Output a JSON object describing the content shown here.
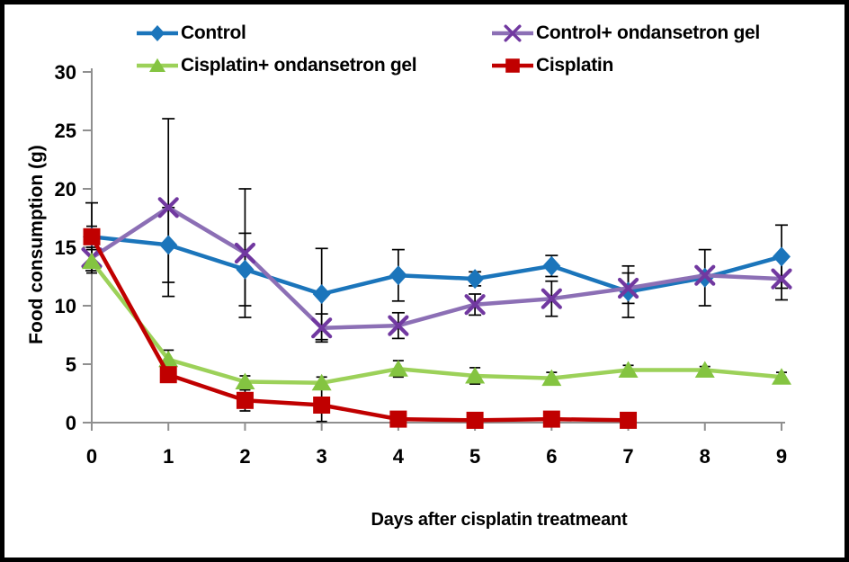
{
  "frame": {
    "background": "#ffffff",
    "border_color": "#000000"
  },
  "legend": {
    "items": [
      {
        "label": "Control",
        "marker": "diamond-marker-icon"
      },
      {
        "label": "Control+ ondansetron gel",
        "marker": "x-marker-icon"
      },
      {
        "label": "Cisplatin+ ondansetron gel",
        "marker": "triangle-marker-icon"
      },
      {
        "label": "Cisplatin",
        "marker": "square-marker-icon"
      }
    ]
  },
  "chart_data": {
    "type": "line",
    "title": "",
    "xlabel": "Days after cisplatin treatmeant",
    "ylabel": "Food consumption (g)",
    "x": [
      0,
      1,
      2,
      3,
      4,
      5,
      6,
      7,
      8,
      9
    ],
    "xlim": [
      0,
      9
    ],
    "ylim": [
      0,
      30
    ],
    "y_ticks": [
      0,
      5,
      10,
      15,
      20,
      25,
      30
    ],
    "grid": false,
    "legend_position": "top",
    "error_bar_color": "#000000",
    "axis_color": "#8F8F8F",
    "series": [
      {
        "name": "Control",
        "marker": "diamond",
        "color": "#1B75BB",
        "marker_color": "#1B75BB",
        "values": [
          15.9,
          15.2,
          13.1,
          11.0,
          12.6,
          12.3,
          13.4,
          11.2,
          12.4,
          14.2
        ],
        "error": [
          2.9,
          3.2,
          3.1,
          3.9,
          2.2,
          0.6,
          0.9,
          2.2,
          2.4,
          2.7
        ]
      },
      {
        "name": "Control+ ondansetron gel",
        "marker": "x",
        "color": "#8C6FB5",
        "marker_color": "#7138A0",
        "values": [
          14.1,
          18.4,
          14.5,
          8.1,
          8.3,
          10.1,
          10.6,
          11.5,
          12.6,
          12.3
        ],
        "error": [
          0,
          7.6,
          5.5,
          1.2,
          1.1,
          0.9,
          1.5,
          1.3,
          0,
          1.8
        ]
      },
      {
        "name": "Cisplatin+ ondansetron gel",
        "marker": "triangle",
        "color": "#9CD159",
        "marker_color": "#84C441",
        "values": [
          13.8,
          5.4,
          3.5,
          3.4,
          4.6,
          4.0,
          3.8,
          4.5,
          4.5,
          3.9
        ],
        "error": [
          1.0,
          0.8,
          0.5,
          0.5,
          0.7,
          0.7,
          0.5,
          0.4,
          0.3,
          0.4
        ]
      },
      {
        "name": "Cisplatin",
        "marker": "square",
        "color": "#C00000",
        "marker_color": "#C00000",
        "values": [
          15.9,
          4.1,
          1.9,
          1.5,
          0.3,
          0.2,
          0.3,
          0.2,
          null,
          null
        ],
        "error": [
          0.9,
          0.6,
          0.9,
          1.4,
          0.15,
          0.15,
          0.6,
          0.15,
          0,
          0
        ]
      }
    ]
  }
}
